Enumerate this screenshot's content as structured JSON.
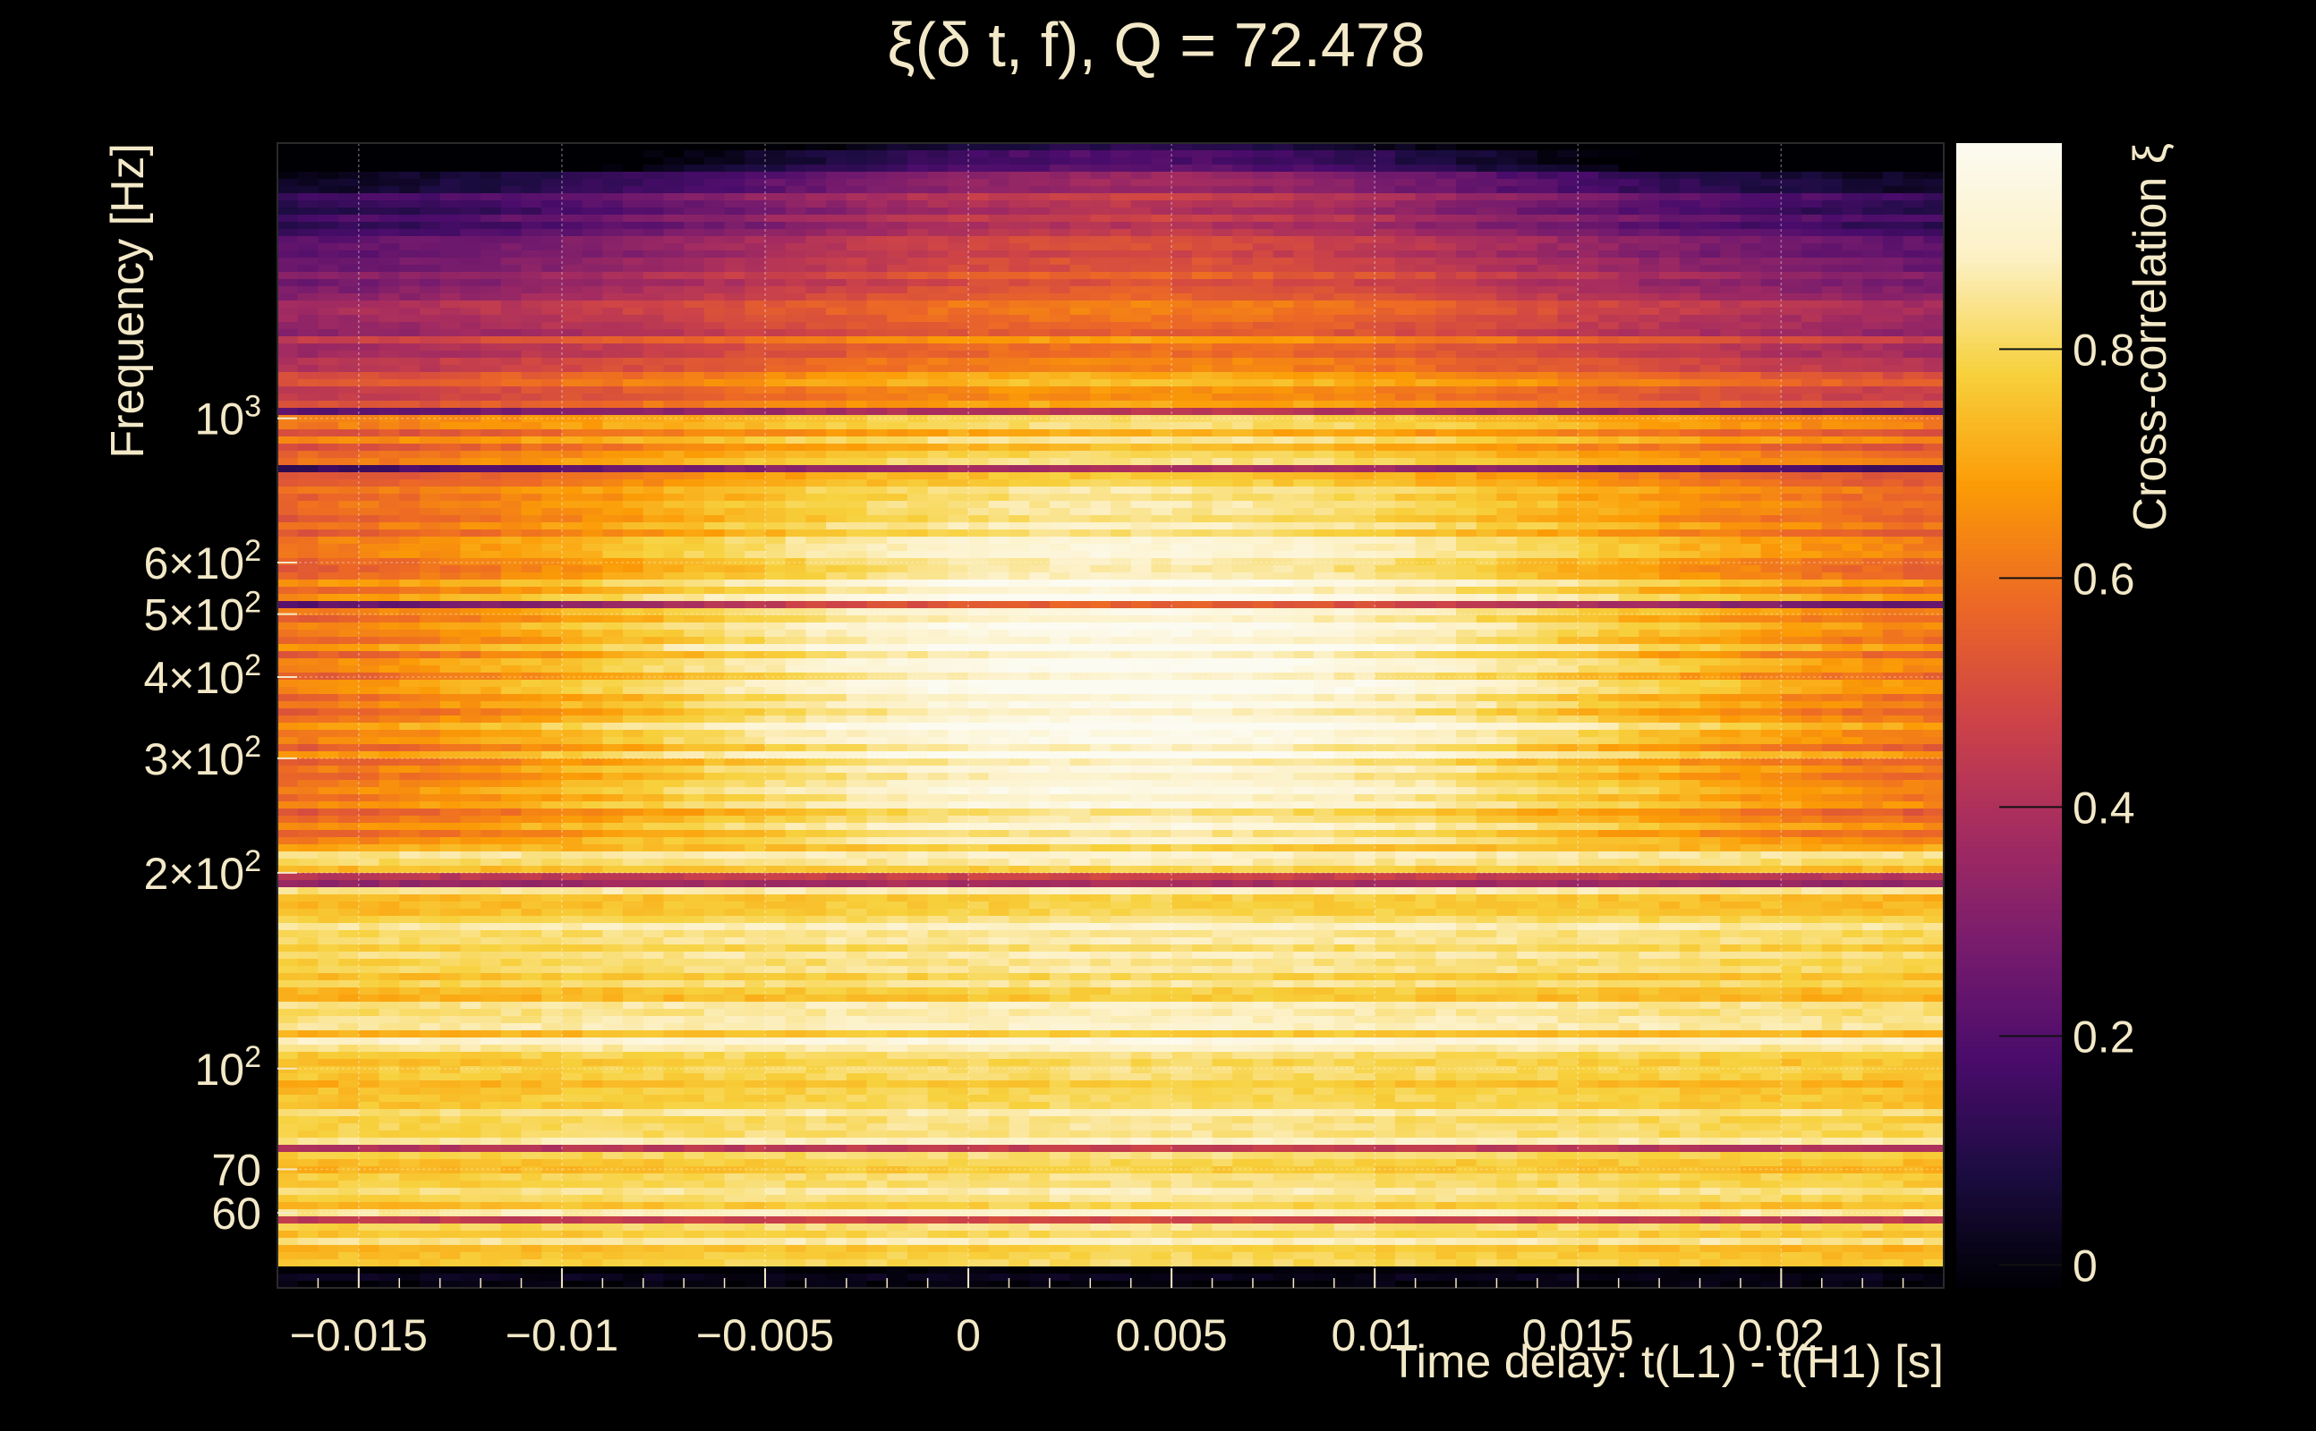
{
  "chart_data": {
    "type": "heatmap",
    "title": "ξ(δ t, f), Q = 72.478",
    "xlabel": "Time delay: t(L1) - t(H1) [s]",
    "ylabel": "Frequency [Hz]",
    "colorbar_label": "Cross-correlation ξ",
    "xlim": [
      -0.017,
      0.024
    ],
    "ylim": [
      46,
      2650
    ],
    "y_scale": "log",
    "colorbar_range": [
      -0.02,
      0.98
    ],
    "grid": true,
    "x_ticks": [
      {
        "value": -0.015,
        "label": "−0.015"
      },
      {
        "value": -0.01,
        "label": "−0.01"
      },
      {
        "value": -0.005,
        "label": "−0.005"
      },
      {
        "value": 0,
        "label": "0"
      },
      {
        "value": 0.005,
        "label": "0.005"
      },
      {
        "value": 0.01,
        "label": "0.01"
      },
      {
        "value": 0.015,
        "label": "0.015"
      },
      {
        "value": 0.02,
        "label": "0.02"
      }
    ],
    "y_ticks": [
      {
        "value": 60,
        "label": "60"
      },
      {
        "value": 70,
        "label": "70"
      },
      {
        "value": 100,
        "base": "10",
        "exp": "2"
      },
      {
        "value": 200,
        "mant": "2×",
        "base": "10",
        "exp": "2"
      },
      {
        "value": 300,
        "mant": "3×",
        "base": "10",
        "exp": "2"
      },
      {
        "value": 400,
        "mant": "4×",
        "base": "10",
        "exp": "2"
      },
      {
        "value": 500,
        "mant": "5×",
        "base": "10",
        "exp": "2"
      },
      {
        "value": 600,
        "mant": "6×",
        "base": "10",
        "exp": "2"
      },
      {
        "value": 1000,
        "base": "10",
        "exp": "3"
      }
    ],
    "colorbar_ticks": [
      {
        "value": 0,
        "label": "0"
      },
      {
        "value": 0.2,
        "label": "0.2"
      },
      {
        "value": 0.4,
        "label": "0.4"
      },
      {
        "value": 0.6,
        "label": "0.6"
      },
      {
        "value": 0.8,
        "label": "0.8"
      }
    ],
    "colormap": [
      "#000004",
      "#1b0c41",
      "#4a0c6b",
      "#781c6d",
      "#a52c60",
      "#cf4446",
      "#ed6925",
      "#fb9b06",
      "#f7d13d",
      "#fcf0c4",
      "#fcfbf1"
    ],
    "peak": {
      "x": 0.004,
      "y": 400
    },
    "dark_lines_hz": [
      1030,
      840,
      520,
      195,
      75,
      59,
      49
    ],
    "bright_lines_hz": [
      340,
      255,
      110,
      82
    ]
  }
}
